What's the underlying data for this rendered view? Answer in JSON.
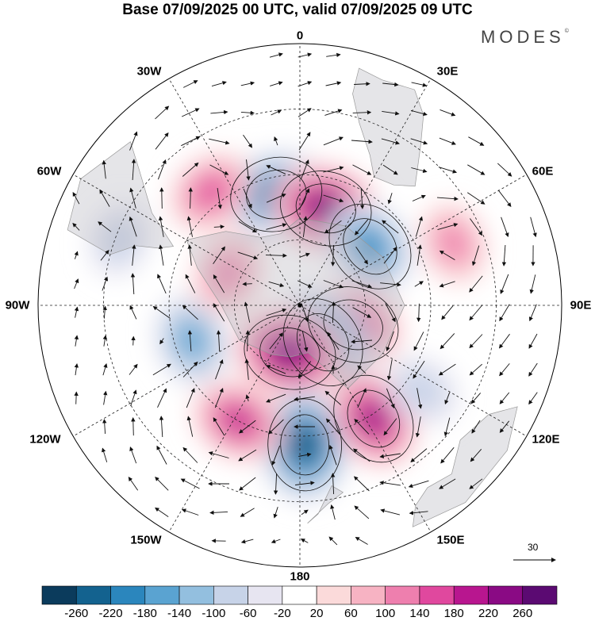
{
  "title": "Base 07/09/2025 00 UTC, valid 07/09/2025 09 UTC",
  "brand": {
    "name": "MODES",
    "mark": "©"
  },
  "longitudes": {
    "lon0": "0",
    "lon30e": "30E",
    "lon60e": "60E",
    "lon90e": "90E",
    "lon120e": "120E",
    "lon150e": "150E",
    "lon180": "180",
    "lon150w": "150W",
    "lon120w": "120W",
    "lon90w": "90W",
    "lon60w": "60W",
    "lon30w": "30W"
  },
  "reference_vector": {
    "value": "30"
  },
  "colorbar": {
    "labels": [
      "-260",
      "-220",
      "-180",
      "-140",
      "-100",
      "-60",
      "-20",
      "20",
      "60",
      "100",
      "140",
      "180",
      "220",
      "260"
    ],
    "colors": [
      "#0b3b5c",
      "#13628f",
      "#2b86bd",
      "#5aa3d1",
      "#93bfdf",
      "#c7d3e8",
      "#e7e5f1",
      "#ffffff",
      "#fbdada",
      "#f7b3c3",
      "#ee7fae",
      "#e0489e",
      "#b8168f",
      "#8a0a84",
      "#5b0a72"
    ]
  },
  "anomaly_centers": [
    {
      "id": "neg-atlantic",
      "lon": -12,
      "colat": 26,
      "value": -240
    },
    {
      "id": "pos-southafrica",
      "lon": 15,
      "colat": 23,
      "value": 250
    },
    {
      "id": "neg-indian",
      "lon": 50,
      "colat": 21,
      "value": -180
    },
    {
      "id": "pos-farindian",
      "lon": 68,
      "colat": 38,
      "value": 100
    },
    {
      "id": "pos-kerguelen",
      "lon": 110,
      "colat": 13,
      "value": 200
    },
    {
      "id": "neg-east-ant",
      "lon": 148,
      "colat": 10,
      "value": -250
    },
    {
      "id": "pos-ross",
      "lon": 192,
      "colat": 11,
      "value": 260
    },
    {
      "id": "neg-tasman",
      "lon": 178,
      "colat": 32,
      "value": -260
    },
    {
      "id": "pos-southaus",
      "lon": 147,
      "colat": 31,
      "value": 210
    },
    {
      "id": "neg-australia",
      "lon": 125,
      "colat": 34,
      "value": -80
    },
    {
      "id": "pos-pacific",
      "lon": 208,
      "colat": 30,
      "value": 170
    },
    {
      "id": "neg-sepac",
      "lon": 252,
      "colat": 26,
      "value": -150
    },
    {
      "id": "pos-drake",
      "lon": -66,
      "colat": 18,
      "value": 120
    },
    {
      "id": "pos-argentina",
      "lon": -38,
      "colat": 33,
      "value": 140
    },
    {
      "id": "neg-chile",
      "lon": -70,
      "colat": 44,
      "value": -60
    }
  ]
}
